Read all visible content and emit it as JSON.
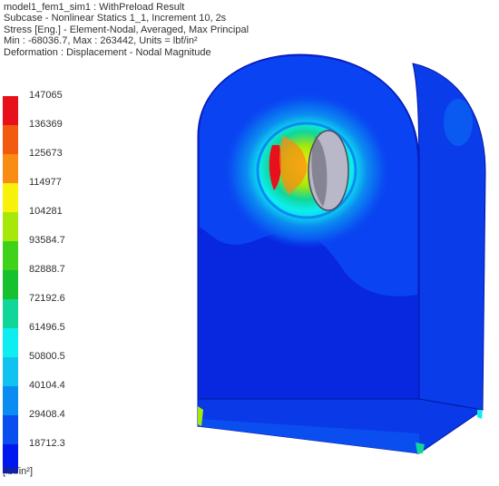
{
  "header": {
    "lines": [
      "model1_fem1_sim1 : WithPreload Result",
      "Subcase - Nonlinear Statics 1_1, Increment 10, 2s",
      "Stress [Eng.] - Element-Nodal, Averaged, Max Principal",
      "Min : -68036.7, Max : 263442, Units = lbf/in²",
      "Deformation : Displacement - Nodal Magnitude"
    ]
  },
  "legend": {
    "ticks": [
      "147065",
      "136369",
      "125673",
      "114977",
      "104281",
      "93584.7",
      "82888.7",
      "72192.6",
      "61496.5",
      "50800.5",
      "40104.4",
      "29408.4",
      "18712.3"
    ],
    "colors": [
      "#e8101a",
      "#f25a0f",
      "#f88c14",
      "#f8f20a",
      "#a6e80a",
      "#3fd21a",
      "#16c02e",
      "#10d69a",
      "#0eeef0",
      "#10c2f0",
      "#0b8cf0",
      "#0a4ef0",
      "#0018f0"
    ],
    "units": "[lbf/in²]"
  },
  "model": {
    "colors": {
      "body_front": "#0828e0",
      "body_top": "#0a44f2",
      "body_side": "#0822d4",
      "edge": "#0016a0",
      "bore": "#b8b8c8"
    }
  }
}
